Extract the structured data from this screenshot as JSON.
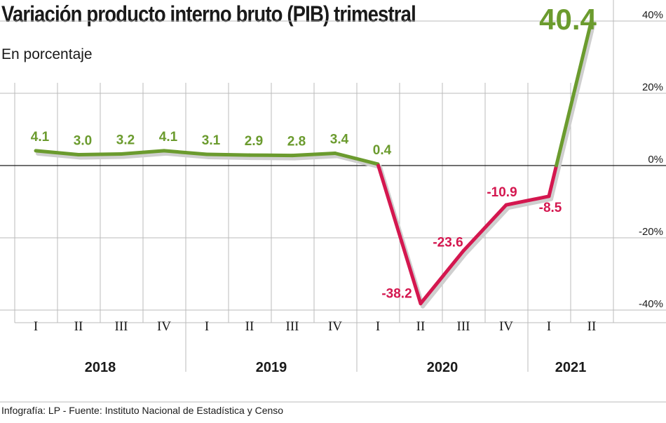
{
  "title": "Variación producto interno bruto (PIB) trimestral",
  "subtitle": "En porcentaje",
  "footer": "Infografía: LP - Fuente: Instituto Nacional de Estadística y Censo",
  "colors": {
    "positive": "#6b9b2e",
    "negative": "#d4174f",
    "grid": "#bbbbbb",
    "axis": "#1a1a1a"
  },
  "chart_data": {
    "type": "line",
    "title": "Variación producto interno bruto (PIB) trimestral",
    "subtitle": "En porcentaje",
    "ylim": [
      -40,
      40
    ],
    "yticks": [
      "40%",
      "20%",
      "0%",
      "-20%",
      "-40%"
    ],
    "yticks_values": [
      40,
      20,
      0,
      -20,
      -40
    ],
    "grid": true,
    "categories": [
      "I",
      "II",
      "III",
      "IV",
      "I",
      "II",
      "III",
      "IV",
      "I",
      "II",
      "III",
      "IV",
      "I",
      "II"
    ],
    "years": [
      {
        "label": "2018",
        "quarters": 4
      },
      {
        "label": "2019",
        "quarters": 4
      },
      {
        "label": "2020",
        "quarters": 4
      },
      {
        "label": "2021",
        "quarters": 2
      }
    ],
    "series": [
      {
        "values": [
          4.1,
          3.0,
          3.2,
          4.1,
          3.1,
          2.9,
          2.8,
          3.4,
          0.4,
          -38.2,
          -23.6,
          -10.9,
          -8.5,
          40.4
        ],
        "labels": [
          "4.1",
          "3.0",
          "3.2",
          "4.1",
          "3.1",
          "2.9",
          "2.8",
          "3.4",
          "0.4",
          "-38.2",
          "-23.6",
          "-10.9",
          "-8.5",
          "40.4"
        ]
      }
    ]
  }
}
